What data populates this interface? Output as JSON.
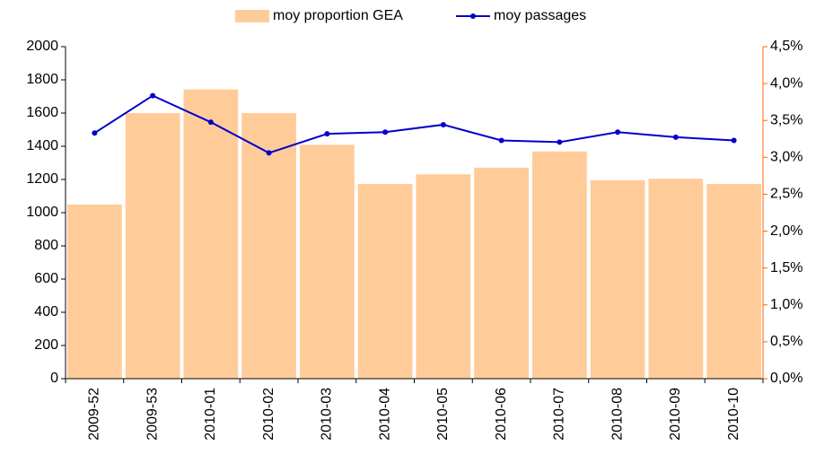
{
  "chart_data": {
    "type": "bar-line",
    "categories": [
      "2009-52",
      "2009-53",
      "2010-01",
      "2010-02",
      "2010-03",
      "2010-04",
      "2010-05",
      "2010-06",
      "2010-07",
      "2010-08",
      "2010-09",
      "2010-10"
    ],
    "series": [
      {
        "name": "moy proportion GEA",
        "color": "#ffcc99",
        "kind": "bar",
        "axis": "y2",
        "values": [
          2.36,
          3.6,
          3.92,
          3.6,
          3.17,
          2.64,
          2.77,
          2.86,
          3.08,
          2.69,
          2.71,
          2.64
        ]
      },
      {
        "name": "moy passages",
        "color": "#0000cc",
        "kind": "line",
        "axis": "y",
        "values": [
          1480,
          1705,
          1545,
          1360,
          1475,
          1485,
          1530,
          1435,
          1425,
          1485,
          1455,
          1435
        ]
      }
    ],
    "ylim": [
      0,
      2000
    ],
    "yticks": [
      0,
      200,
      400,
      600,
      800,
      1000,
      1200,
      1400,
      1600,
      1800,
      2000
    ],
    "y2lim": [
      0,
      4.5
    ],
    "y2ticks": [
      {
        "value": 0,
        "label": "0,0%"
      },
      {
        "value": 0.5,
        "label": "0,5%"
      },
      {
        "value": 1,
        "label": "1,0%"
      },
      {
        "value": 1.5,
        "label": "1,5%"
      },
      {
        "value": 2,
        "label": "2,0%"
      },
      {
        "value": 2.5,
        "label": "2,5%"
      },
      {
        "value": 3,
        "label": "3,0%"
      },
      {
        "value": 3.5,
        "label": "3,5%"
      },
      {
        "value": 4,
        "label": "4,0%"
      },
      {
        "value": 4.5,
        "label": "4,5%"
      }
    ],
    "y2_axis_color": "#ff6600",
    "legend": "top",
    "grid": false
  }
}
